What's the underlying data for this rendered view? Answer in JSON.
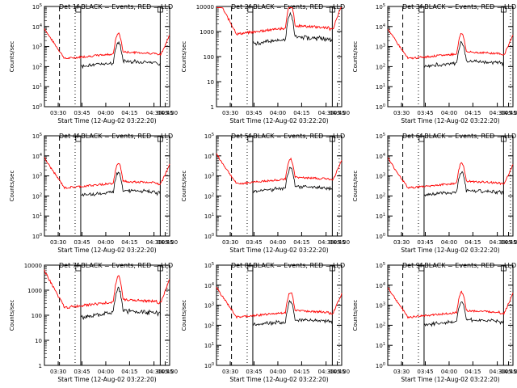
{
  "figure": {
    "title_template": "BLACK = Events, RED = LLD",
    "xlabel": "Start Time (12-Aug-02 03:22:20)",
    "ylabel": "Counts/sec",
    "x_ticks": [
      "03:30",
      "03:45",
      "04:00",
      "04:15",
      "04:30",
      "04:45",
      "05:00"
    ]
  },
  "colors": {
    "events": "#000000",
    "lld": "#ff0000",
    "axis": "#000000",
    "background": "#ffffff"
  },
  "chart_data": [
    {
      "type": "line",
      "title": "Det 1f BLACK = Events, RED = LLD",
      "ylog": true,
      "ylim": [
        1,
        100000
      ],
      "ytick_style": "power",
      "series": [
        {
          "name": "BLACK = Events"
        },
        {
          "name": "RED = LLD"
        }
      ]
    },
    {
      "type": "line",
      "title": "Det 2f BLACK = Events, RED = LLD",
      "ylog": true,
      "ylim": [
        1,
        10000
      ],
      "ytick_style": "plain",
      "series": [
        {
          "name": "BLACK = Events"
        },
        {
          "name": "RED = LLD"
        }
      ]
    },
    {
      "type": "line",
      "title": "Det 3f BLACK = Events, RED = LLD",
      "ylog": true,
      "ylim": [
        1,
        100000
      ],
      "ytick_style": "power",
      "series": [
        {
          "name": "BLACK = Events"
        },
        {
          "name": "RED = LLD"
        }
      ]
    },
    {
      "type": "line",
      "title": "Det 4f BLACK = Events, RED = LLD",
      "ylog": true,
      "ylim": [
        1,
        100000
      ],
      "ytick_style": "power",
      "series": [
        {
          "name": "BLACK = Events"
        },
        {
          "name": "RED = LLD"
        }
      ]
    },
    {
      "type": "line",
      "title": "Det 5f BLACK = Events, RED = LLD",
      "ylog": true,
      "ylim": [
        1,
        100000
      ],
      "ytick_style": "power",
      "series": [
        {
          "name": "BLACK = Events"
        },
        {
          "name": "RED = LLD"
        }
      ]
    },
    {
      "type": "line",
      "title": "Det 6f BLACK = Events, RED = LLD",
      "ylog": true,
      "ylim": [
        1,
        100000
      ],
      "ytick_style": "power",
      "series": [
        {
          "name": "BLACK = Events"
        },
        {
          "name": "RED = LLD"
        }
      ]
    },
    {
      "type": "line",
      "title": "Det 7f BLACK = Events, RED = LLD",
      "ylog": true,
      "ylim": [
        1,
        10000
      ],
      "ytick_style": "plain",
      "series": [
        {
          "name": "BLACK = Events"
        },
        {
          "name": "RED = LLD"
        }
      ]
    },
    {
      "type": "line",
      "title": "Det 8f BLACK = Events, RED = LLD",
      "ylog": true,
      "ylim": [
        1,
        100000
      ],
      "ytick_style": "power",
      "series": [
        {
          "name": "BLACK = Events"
        },
        {
          "name": "RED = LLD"
        }
      ]
    },
    {
      "type": "line",
      "title": "Det 9f BLACK = Events, RED = LLD",
      "ylog": true,
      "ylim": [
        1,
        100000
      ],
      "ytick_style": "power",
      "series": [
        {
          "name": "BLACK = Events"
        },
        {
          "name": "RED = LLD"
        }
      ]
    }
  ]
}
